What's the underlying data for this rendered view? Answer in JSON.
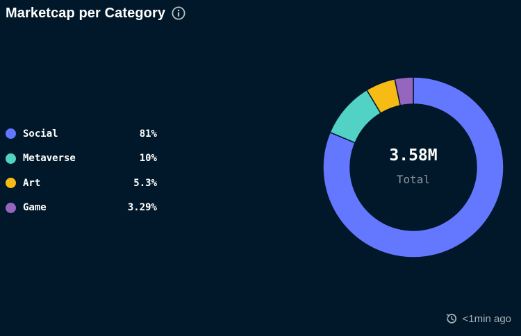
{
  "header": {
    "title": "Marketcap per Category",
    "info_icon": "info-icon"
  },
  "chart_data": {
    "type": "pie",
    "title": "Marketcap per Category",
    "variant": "donut",
    "categories": [
      "Social",
      "Metaverse",
      "Art",
      "Game"
    ],
    "values": [
      81,
      10,
      5.3,
      3.29
    ],
    "value_labels": [
      "81%",
      "10%",
      "5.3%",
      "3.29%"
    ],
    "colors": [
      "#6477ff",
      "#52d2c5",
      "#f6bb15",
      "#9565bf"
    ],
    "center_value": "3.58M",
    "center_label": "Total",
    "legend_position": "left"
  },
  "footer": {
    "refresh_icon": "refresh-clock-icon",
    "updated_text": "<1min ago"
  },
  "colors": {
    "background": "#001829",
    "segment_border": "#001829"
  }
}
